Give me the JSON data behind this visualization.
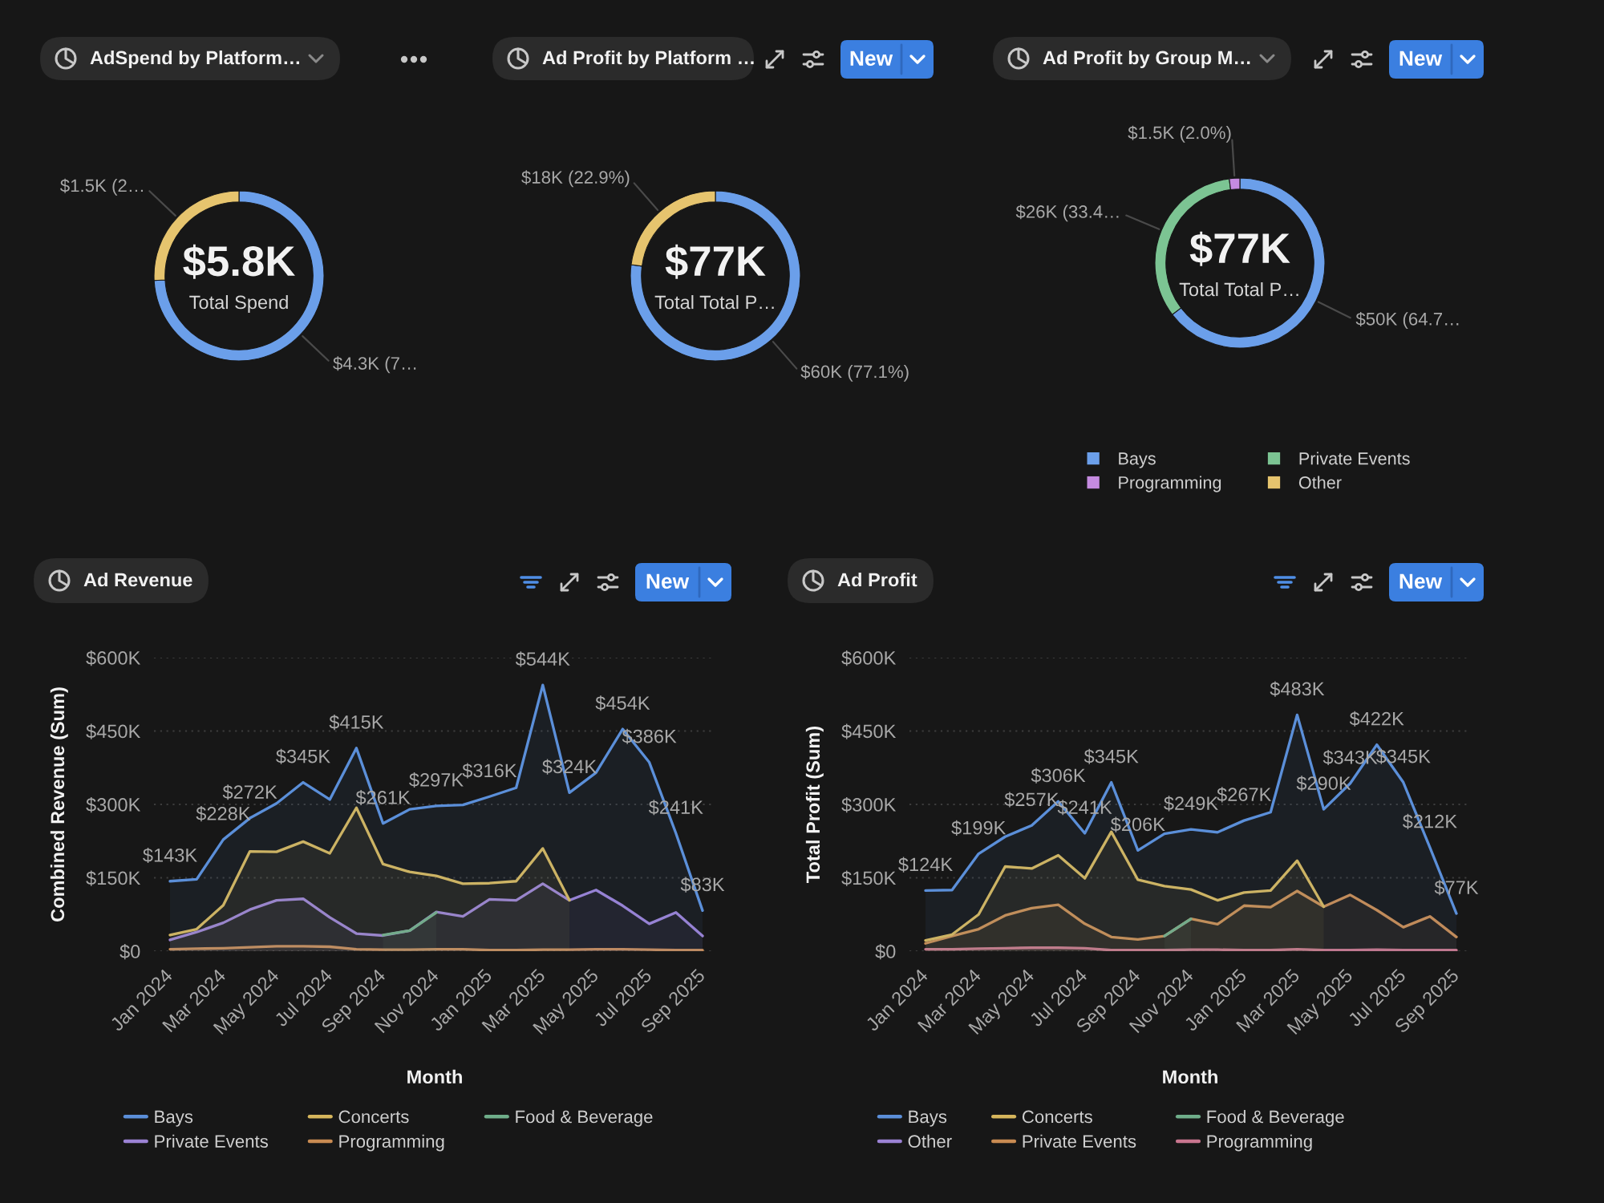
{
  "chart_data": [
    {
      "type": "donut",
      "title": "AdSpend by Platform…",
      "categories": [
        null,
        null
      ],
      "values": [
        4300,
        1500
      ],
      "colors": [
        "#6b9fea",
        "#e6c46e"
      ],
      "value_labels": [
        "$4.3K (7…",
        "$1.5K (2…"
      ],
      "annotations": [
        "$5.8K",
        "Total Spend"
      ]
    },
    {
      "type": "donut",
      "title": "Ad Profit by Platform …",
      "categories": [
        null,
        null
      ],
      "values": [
        77.1,
        22.9
      ],
      "colors": [
        "#6b9fea",
        "#e6c46e"
      ],
      "value_labels": [
        "$60K (77.1%)",
        "$18K (22.9%)"
      ],
      "annotations": [
        "$77K",
        "Total Total P…",
        "New"
      ]
    },
    {
      "type": "donut",
      "title": "Ad Profit by Group M…",
      "categories": [
        "Bays",
        "Private Events",
        "Programming",
        "Other"
      ],
      "values": [
        64.7,
        33.4,
        2.0,
        0
      ],
      "colors": [
        "#6b9fea",
        "#7cc493",
        "#c58be0",
        "#e6c46e"
      ],
      "value_labels": [
        "$50K (64.7…",
        "$26K (33.4…",
        "$1.5K (2.0%)",
        null
      ],
      "legend": "bottom",
      "annotations": [
        "$77K",
        "Total Total P…",
        "New"
      ]
    },
    {
      "type": "area",
      "title": "Ad Revenue",
      "xlabel": "Month",
      "ylabel": "Combined Revenue (Sum)",
      "categories": [
        "Jan 2024",
        null,
        "Mar 2024",
        null,
        "May 2024",
        null,
        "Jul 2024",
        null,
        "Sep 2024",
        null,
        "Nov 2024",
        null,
        "Jan 2025",
        null,
        "Mar 2025",
        null,
        "May 2025",
        null,
        "Jul 2025",
        null,
        "Sep 2025"
      ],
      "series": [
        {
          "name": "Bays",
          "color": "#5b8fd9",
          "values": [
            143,
            147,
            228,
            272,
            302,
            345,
            310,
            415,
            261,
            290,
            297,
            299,
            316,
            334,
            544,
            324,
            365,
            454,
            386,
            241,
            83
          ],
          "value_labels": [
            "$143K",
            null,
            "$228K",
            "$272K",
            null,
            "$345K",
            null,
            "$415K",
            "$261K",
            null,
            "$297K",
            null,
            "$316K",
            null,
            "$544K",
            "$324K",
            null,
            "$454K",
            "$386K",
            "$241K",
            "$83K"
          ]
        },
        {
          "name": "Concerts",
          "color": "#d6b65c",
          "values": [
            33,
            45,
            94,
            204,
            203,
            224,
            200,
            293,
            178,
            162,
            154,
            138,
            139,
            143,
            210,
            104,
            null,
            null,
            null,
            null,
            null
          ]
        },
        {
          "name": "Food & Beverage",
          "color": "#6fae8a",
          "values": [
            null,
            null,
            null,
            null,
            null,
            null,
            null,
            null,
            33,
            42,
            79,
            null,
            null,
            null,
            null,
            null,
            null,
            null,
            null,
            null,
            null
          ]
        },
        {
          "name": "Private Events",
          "color": "#9b82d4",
          "values": [
            23,
            39,
            58,
            85,
            104,
            107,
            69,
            36,
            32,
            42,
            80,
            71,
            106,
            104,
            138,
            104,
            125,
            93,
            56,
            79,
            31
          ]
        },
        {
          "name": "Programming",
          "color": "#c98b52",
          "values": [
            4,
            5,
            6,
            8,
            10,
            10,
            9,
            4,
            3,
            3,
            4,
            4,
            2,
            2,
            3,
            3,
            4,
            4,
            3,
            2,
            2
          ]
        }
      ],
      "ylim": [
        0,
        600
      ],
      "yticks": [
        {
          "value": 0,
          "label": "$0"
        },
        {
          "value": 150,
          "label": "$150K"
        },
        {
          "value": 300,
          "label": "$300K"
        },
        {
          "value": 450,
          "label": "$450K"
        },
        {
          "value": 600,
          "label": "$600K"
        }
      ],
      "grid": "y",
      "legend": "bottom",
      "annotations": [
        "New"
      ]
    },
    {
      "type": "area",
      "title": "Ad Profit",
      "xlabel": "Month",
      "ylabel": "Total Profit (Sum)",
      "categories": [
        "Jan 2024",
        null,
        "Mar 2024",
        null,
        "May 2024",
        null,
        "Jul 2024",
        null,
        "Sep 2024",
        null,
        "Nov 2024",
        null,
        "Jan 2025",
        null,
        "Mar 2025",
        null,
        "May 2025",
        null,
        "Jul 2025",
        null,
        "Sep 2025"
      ],
      "series": [
        {
          "name": "Bays",
          "color": "#5b8fd9",
          "values": [
            124,
            125,
            199,
            234,
            257,
            306,
            241,
            345,
            206,
            240,
            249,
            243,
            267,
            284,
            483,
            290,
            343,
            422,
            345,
            212,
            77
          ],
          "value_labels": [
            "$124K",
            null,
            "$199K",
            null,
            "$257K",
            "$306K",
            "$241K",
            "$345K",
            "$206K",
            null,
            "$249K",
            null,
            "$267K",
            null,
            "$483K",
            "$290K",
            "$343K",
            "$422K",
            "$345K",
            "$212K",
            "$77K"
          ]
        },
        {
          "name": "Concerts",
          "color": "#d6b65c",
          "values": [
            22,
            34,
            75,
            173,
            169,
            196,
            149,
            244,
            146,
            133,
            126,
            104,
            120,
            124,
            185,
            91,
            null,
            null,
            null,
            null,
            null
          ]
        },
        {
          "name": "Food & Beverage",
          "color": "#6fae8a",
          "values": [
            null,
            null,
            null,
            null,
            null,
            null,
            null,
            null,
            null,
            31,
            66,
            null,
            null,
            null,
            null,
            null,
            null,
            null,
            null,
            null,
            null
          ]
        },
        {
          "name": "Other",
          "color": "#9b82d4",
          "values": [
            null,
            null,
            null,
            null,
            null,
            null,
            null,
            null,
            null,
            null,
            null,
            null,
            null,
            null,
            null,
            null,
            null,
            null,
            null,
            null,
            null
          ]
        },
        {
          "name": "Private Events",
          "color": "#c98b52",
          "values": [
            16,
            31,
            45,
            73,
            88,
            95,
            56,
            29,
            24,
            31,
            66,
            55,
            93,
            90,
            123,
            91,
            115,
            84,
            49,
            71,
            29
          ]
        },
        {
          "name": "Programming",
          "color": "#c9768f",
          "values": [
            4,
            4,
            5,
            6,
            7,
            7,
            6,
            2,
            2,
            2,
            3,
            3,
            2,
            2,
            4,
            2,
            2,
            3,
            2,
            2,
            2
          ]
        }
      ],
      "ylim": [
        0,
        600
      ],
      "yticks": [
        {
          "value": 0,
          "label": "$0"
        },
        {
          "value": 150,
          "label": "$150K"
        },
        {
          "value": 300,
          "label": "$300K"
        },
        {
          "value": 450,
          "label": "$450K"
        },
        {
          "value": 600,
          "label": "$600K"
        }
      ],
      "grid": "y",
      "legend": "bottom",
      "annotations": [
        "New"
      ]
    }
  ]
}
